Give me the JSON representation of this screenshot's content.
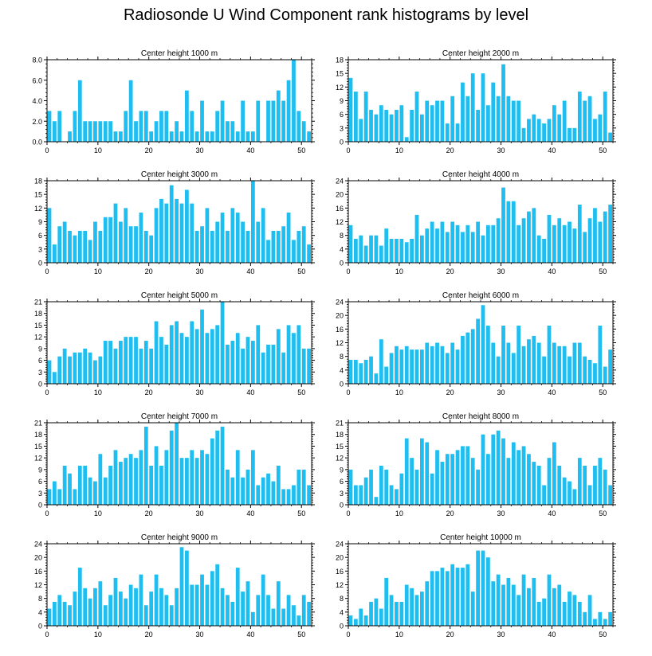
{
  "title": "Radiosonde U Wind Component rank histograms by level",
  "colors": {
    "bar": "#1EBFF0",
    "axis": "#000000",
    "background": "#ffffff"
  },
  "chart_data": [
    {
      "type": "bar",
      "title": "Center height 1000 m",
      "ylim": [
        0,
        8
      ],
      "yticks": [
        "0.0",
        "2.0",
        "4.0",
        "6.0",
        "8.0"
      ],
      "ytick_values": [
        0,
        2,
        4,
        6,
        8
      ],
      "xlim": [
        0,
        52
      ],
      "xticks": [
        0,
        10,
        20,
        30,
        40,
        50
      ],
      "values": [
        3,
        2,
        3,
        0,
        1,
        3,
        6,
        2,
        2,
        2,
        2,
        2,
        2,
        1,
        1,
        3,
        6,
        2,
        3,
        3,
        1,
        2,
        3,
        3,
        1,
        2,
        1,
        5,
        3,
        1,
        4,
        1,
        1,
        3,
        4,
        2,
        2,
        1,
        4,
        1,
        1,
        4,
        0,
        4,
        4,
        5,
        4,
        6,
        8,
        3,
        2,
        1
      ]
    },
    {
      "type": "bar",
      "title": "Center height 2000 m",
      "ylim": [
        0,
        18
      ],
      "yticks": [
        "0",
        "3",
        "6",
        "9",
        "12",
        "15",
        "18"
      ],
      "ytick_values": [
        0,
        3,
        6,
        9,
        12,
        15,
        18
      ],
      "xlim": [
        0,
        52
      ],
      "xticks": [
        0,
        10,
        20,
        30,
        40,
        50
      ],
      "values": [
        14,
        11,
        5,
        11,
        7,
        6,
        8,
        7,
        6,
        7,
        8,
        1,
        7,
        11,
        6,
        9,
        8,
        9,
        9,
        4,
        10,
        4,
        13,
        10,
        15,
        7,
        15,
        8,
        13,
        10,
        17,
        10,
        9,
        9,
        3,
        5,
        6,
        5,
        4,
        5,
        8,
        6,
        9,
        3,
        3,
        11,
        9,
        10,
        5,
        6,
        11,
        2
      ]
    },
    {
      "type": "bar",
      "title": "Center height 3000 m",
      "ylim": [
        0,
        18
      ],
      "yticks": [
        "0",
        "3",
        "6",
        "9",
        "12",
        "15",
        "18"
      ],
      "ytick_values": [
        0,
        3,
        6,
        9,
        12,
        15,
        18
      ],
      "xlim": [
        0,
        52
      ],
      "xticks": [
        0,
        10,
        20,
        30,
        40,
        50
      ],
      "values": [
        12,
        4,
        8,
        9,
        7,
        6,
        7,
        7,
        5,
        9,
        7,
        10,
        10,
        13,
        9,
        12,
        8,
        8,
        11,
        7,
        6,
        12,
        14,
        13,
        17,
        14,
        13,
        16,
        13,
        7,
        8,
        12,
        7,
        9,
        11,
        7,
        12,
        11,
        9,
        7,
        18,
        9,
        12,
        5,
        7,
        7,
        8,
        11,
        5,
        7,
        8,
        4
      ]
    },
    {
      "type": "bar",
      "title": "Center height 4000 m",
      "ylim": [
        0,
        24
      ],
      "yticks": [
        "0",
        "4",
        "8",
        "12",
        "16",
        "20",
        "24"
      ],
      "ytick_values": [
        0,
        4,
        8,
        12,
        16,
        20,
        24
      ],
      "xlim": [
        0,
        52
      ],
      "xticks": [
        0,
        10,
        20,
        30,
        40,
        50
      ],
      "values": [
        11,
        7,
        8,
        5,
        8,
        8,
        5,
        10,
        7,
        7,
        7,
        6,
        7,
        14,
        8,
        10,
        12,
        10,
        12,
        9,
        12,
        11,
        9,
        11,
        9,
        12,
        8,
        11,
        11,
        13,
        22,
        18,
        18,
        11,
        13,
        15,
        16,
        8,
        7,
        14,
        11,
        13,
        11,
        12,
        10,
        17,
        9,
        13,
        16,
        12,
        15,
        17
      ]
    },
    {
      "type": "bar",
      "title": "Center height 5000 m",
      "ylim": [
        0,
        21
      ],
      "yticks": [
        "0",
        "3",
        "6",
        "9",
        "12",
        "15",
        "18",
        "21"
      ],
      "ytick_values": [
        0,
        3,
        6,
        9,
        12,
        15,
        18,
        21
      ],
      "xlim": [
        0,
        52
      ],
      "xticks": [
        0,
        10,
        20,
        30,
        40,
        50
      ],
      "values": [
        6,
        3,
        7,
        9,
        7,
        8,
        8,
        9,
        8,
        6,
        7,
        11,
        11,
        9,
        11,
        12,
        12,
        12,
        9,
        11,
        9,
        16,
        12,
        10,
        15,
        16,
        13,
        12,
        16,
        14,
        19,
        13,
        14,
        15,
        21,
        10,
        11,
        13,
        9,
        12,
        11,
        15,
        8,
        10,
        10,
        14,
        8,
        15,
        13,
        15,
        9,
        9
      ]
    },
    {
      "type": "bar",
      "title": "Center height 6000 m",
      "ylim": [
        0,
        24
      ],
      "yticks": [
        "0",
        "4",
        "8",
        "12",
        "16",
        "20",
        "24"
      ],
      "ytick_values": [
        0,
        4,
        8,
        12,
        16,
        20,
        24
      ],
      "xlim": [
        0,
        52
      ],
      "xticks": [
        0,
        10,
        20,
        30,
        40,
        50
      ],
      "values": [
        7,
        7,
        6,
        7,
        8,
        3,
        13,
        5,
        9,
        11,
        10,
        11,
        10,
        10,
        10,
        12,
        11,
        12,
        11,
        9,
        12,
        10,
        14,
        15,
        16,
        19,
        23,
        17,
        12,
        8,
        17,
        12,
        9,
        17,
        11,
        13,
        14,
        12,
        8,
        17,
        12,
        11,
        11,
        8,
        12,
        12,
        8,
        7,
        6,
        17,
        5,
        10
      ]
    },
    {
      "type": "bar",
      "title": "Center height 7000 m",
      "ylim": [
        0,
        21
      ],
      "yticks": [
        "0",
        "3",
        "6",
        "9",
        "12",
        "15",
        "18",
        "21"
      ],
      "ytick_values": [
        0,
        3,
        6,
        9,
        12,
        15,
        18,
        21
      ],
      "xlim": [
        0,
        52
      ],
      "xticks": [
        0,
        10,
        20,
        30,
        40,
        50
      ],
      "values": [
        4,
        6,
        4,
        10,
        8,
        4,
        10,
        10,
        7,
        6,
        13,
        7,
        10,
        14,
        11,
        12,
        13,
        12,
        14,
        20,
        10,
        15,
        10,
        14,
        19,
        21,
        12,
        12,
        14,
        12,
        14,
        13,
        17,
        19,
        20,
        9,
        7,
        14,
        7,
        9,
        14,
        5,
        7,
        8,
        6,
        10,
        4,
        4,
        5,
        9,
        9,
        5
      ]
    },
    {
      "type": "bar",
      "title": "Center height 8000 m",
      "ylim": [
        0,
        21
      ],
      "yticks": [
        "0",
        "3",
        "6",
        "9",
        "12",
        "15",
        "18",
        "21"
      ],
      "ytick_values": [
        0,
        3,
        6,
        9,
        12,
        15,
        18,
        21
      ],
      "xlim": [
        0,
        52
      ],
      "xticks": [
        0,
        10,
        20,
        30,
        40,
        50
      ],
      "values": [
        9,
        5,
        5,
        7,
        9,
        2,
        10,
        9,
        5,
        4,
        8,
        17,
        12,
        9,
        17,
        16,
        8,
        14,
        11,
        13,
        13,
        14,
        15,
        15,
        12,
        9,
        18,
        13,
        18,
        19,
        17,
        12,
        16,
        14,
        15,
        13,
        11,
        10,
        5,
        12,
        16,
        10,
        7,
        6,
        4,
        12,
        10,
        5,
        10,
        12,
        9,
        5
      ]
    },
    {
      "type": "bar",
      "title": "Center height 9000 m",
      "ylim": [
        0,
        24
      ],
      "yticks": [
        "0",
        "4",
        "8",
        "12",
        "16",
        "20",
        "24"
      ],
      "ytick_values": [
        0,
        4,
        8,
        12,
        16,
        20,
        24
      ],
      "xlim": [
        0,
        52
      ],
      "xticks": [
        0,
        10,
        20,
        30,
        40,
        50
      ],
      "values": [
        5,
        7,
        9,
        7,
        6,
        10,
        17,
        11,
        8,
        11,
        13,
        6,
        9,
        14,
        10,
        8,
        12,
        11,
        15,
        6,
        10,
        15,
        11,
        9,
        6,
        11,
        23,
        22,
        12,
        12,
        15,
        12,
        16,
        18,
        11,
        9,
        7,
        17,
        10,
        13,
        4,
        9,
        15,
        9,
        5,
        13,
        5,
        9,
        6,
        3,
        9,
        7
      ]
    },
    {
      "type": "bar",
      "title": "Center height 10000 m",
      "ylim": [
        0,
        24
      ],
      "yticks": [
        "0",
        "4",
        "8",
        "12",
        "16",
        "20",
        "24"
      ],
      "ytick_values": [
        0,
        4,
        8,
        12,
        16,
        20,
        24
      ],
      "xlim": [
        0,
        52
      ],
      "xticks": [
        0,
        10,
        20,
        30,
        40,
        50
      ],
      "values": [
        3,
        2,
        5,
        3,
        7,
        8,
        5,
        14,
        9,
        7,
        7,
        12,
        11,
        9,
        10,
        13,
        16,
        16,
        17,
        16,
        18,
        17,
        17,
        18,
        10,
        22,
        22,
        20,
        13,
        15,
        12,
        14,
        12,
        9,
        15,
        11,
        14,
        7,
        8,
        15,
        11,
        12,
        7,
        10,
        9,
        7,
        4,
        9,
        2,
        4,
        2,
        4
      ]
    }
  ]
}
